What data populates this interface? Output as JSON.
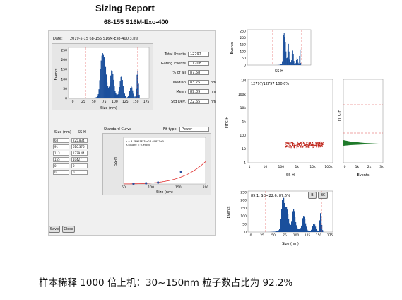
{
  "report": {
    "title": "Sizing Report",
    "subtitle": "68-155 S16M-Exo-400",
    "date_label": "Date:",
    "date_value": "2019-5-15 68-155 S16M-Exo-400 3.nfa"
  },
  "stats": {
    "total_events_label": "Total Events",
    "total_events": "12797",
    "gating_events_label": "Gating Events",
    "gating_events": "11208",
    "pct_all_label": "% of all",
    "pct_all": "87.58",
    "median_label": "Median",
    "median": "83.75",
    "median_unit": "nm",
    "mean_label": "Mean",
    "mean": "89.09",
    "mean_unit": "nm",
    "std_label": "Std Dev.",
    "std": "22.65",
    "std_unit": "nm"
  },
  "main_hist": {
    "ylabel": "Events",
    "xlabel": "Size (nm)",
    "yticks": [
      "250",
      "200",
      "150",
      "100",
      "50",
      "0"
    ],
    "xticks": [
      "0",
      "25",
      "50",
      "75",
      "100",
      "125",
      "150",
      "175"
    ]
  },
  "size_table": {
    "col_size": "Size (nm)",
    "col_ssh": "SS-H",
    "rows": [
      {
        "size": "68",
        "ssh": "225.834"
      },
      {
        "size": "91",
        "ssh": "610.376"
      },
      {
        "size": "113",
        "ssh": "1229.44"
      },
      {
        "size": "155",
        "ssh": "10427"
      },
      {
        "size": "0",
        "ssh": "0"
      },
      {
        "size": "0",
        "ssh": "0"
      }
    ]
  },
  "std_curve": {
    "label": "Standard Curve",
    "fit_label": "Fit type",
    "fit_value": "Power",
    "equation": "y = 4.78915E-7*x^4.60832+0",
    "rsquared": "R-square = 0.99600",
    "ylabel": "SS-H",
    "xlabel": "Size (nm)",
    "xticks": [
      "50",
      "100",
      "150",
      "200"
    ]
  },
  "buttons": {
    "save": "Save",
    "close": "Close"
  },
  "top_hist": {
    "ylabel": "Events",
    "xlabel": "SS-H",
    "yticks": [
      "250",
      "200",
      "150",
      "100",
      "50",
      "0"
    ]
  },
  "scatter": {
    "gate_stats": "12797/12797  100.0%",
    "ylabel": "FITC-H",
    "xlabel": "SS-H",
    "yticks": [
      "1M",
      "100k",
      "10k",
      "1k",
      "100",
      "10",
      "1"
    ],
    "xticks": [
      "1",
      "10",
      "100",
      "1k",
      "10k",
      "100k"
    ]
  },
  "side_hist": {
    "ylabel": "FITC-H",
    "xlabel": "Events",
    "xticks": [
      "0",
      "1k",
      "2k",
      "3k"
    ]
  },
  "bottom_hist": {
    "gate_stats": "89.1, SD=22.6,  87.6%",
    "btn_b": "B",
    "btn_bc": "BC",
    "ylabel": "Events",
    "xlabel": "Size (nm)",
    "yticks": [
      "250",
      "200",
      "150",
      "100",
      "50",
      "0"
    ],
    "xticks": [
      "0",
      "25",
      "50",
      "75",
      "100",
      "125",
      "150",
      "175"
    ]
  },
  "caption": "样本稀释 1000 倍上机：30~150nm 粒子数占比为 92.2%",
  "colors": {
    "hist": "#1a4f9c",
    "gate_line": "#e04a4a",
    "scatter": "#c0281e",
    "side_hist": "#1f7a2a",
    "fit_curve": "#e03030"
  }
}
